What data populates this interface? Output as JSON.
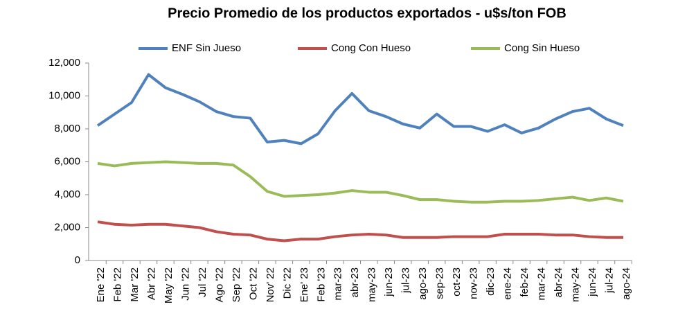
{
  "chart_data": {
    "type": "line",
    "title": "Precio Promedio de los productos exportados - u$s/ton FOB",
    "categories": [
      "Ene '22",
      "Feb '22",
      "Mar '22",
      "Abr '22",
      "May '22",
      "Jun '22",
      "Jul '22",
      "Ago '22",
      "Sep '22",
      "Oct '22",
      "Nov' 22",
      "Dic '22",
      "Ene' 23",
      "Feb '23",
      "mar-23",
      "abr-23",
      "may-23",
      "jun-23",
      "jul-23",
      "ago-23",
      "sep-23",
      "oct-23",
      "nov-23",
      "dic-23",
      "ene-24",
      "feb-24",
      "mar-24",
      "abr-24",
      "may-24",
      "jun-24",
      "jul-24",
      "ago-24"
    ],
    "series": [
      {
        "name": "ENF Sin Jueso",
        "color": "#4f81bd",
        "values": [
          8200,
          8900,
          9600,
          11300,
          10500,
          10100,
          9650,
          9050,
          8750,
          8650,
          7200,
          7300,
          7100,
          7700,
          9100,
          10150,
          9100,
          8750,
          8300,
          8050,
          8900,
          8150,
          8150,
          7850,
          8250,
          7750,
          8050,
          8600,
          9050,
          9250,
          8600,
          8200
        ]
      },
      {
        "name": "Cong Con Hueso",
        "color": "#c0504d",
        "values": [
          2350,
          2200,
          2150,
          2200,
          2200,
          2100,
          2000,
          1750,
          1600,
          1550,
          1300,
          1200,
          1300,
          1300,
          1450,
          1550,
          1600,
          1550,
          1400,
          1400,
          1400,
          1450,
          1450,
          1450,
          1600,
          1600,
          1600,
          1550,
          1550,
          1450,
          1400,
          1400
        ]
      },
      {
        "name": "Cong Sin Hueso",
        "color": "#9bbb59",
        "values": [
          5900,
          5750,
          5900,
          5950,
          6000,
          5950,
          5900,
          5900,
          5800,
          5100,
          4200,
          3900,
          3950,
          4000,
          4100,
          4250,
          4150,
          4150,
          3950,
          3700,
          3700,
          3600,
          3550,
          3550,
          3600,
          3600,
          3650,
          3750,
          3850,
          3650,
          3800,
          3600
        ]
      }
    ],
    "ylim": [
      0,
      12000
    ],
    "yticks": [
      0,
      {
        "value": 2000,
        "label": "2,000"
      },
      {
        "value": 4000,
        "label": "4,000"
      },
      {
        "value": 6000,
        "label": "6,000"
      },
      {
        "value": 8000,
        "label": "8,000"
      },
      {
        "value": 10000,
        "label": "10,000"
      },
      {
        "value": 12000,
        "label": "12,000"
      }
    ],
    "grid": false,
    "legend": "top"
  }
}
